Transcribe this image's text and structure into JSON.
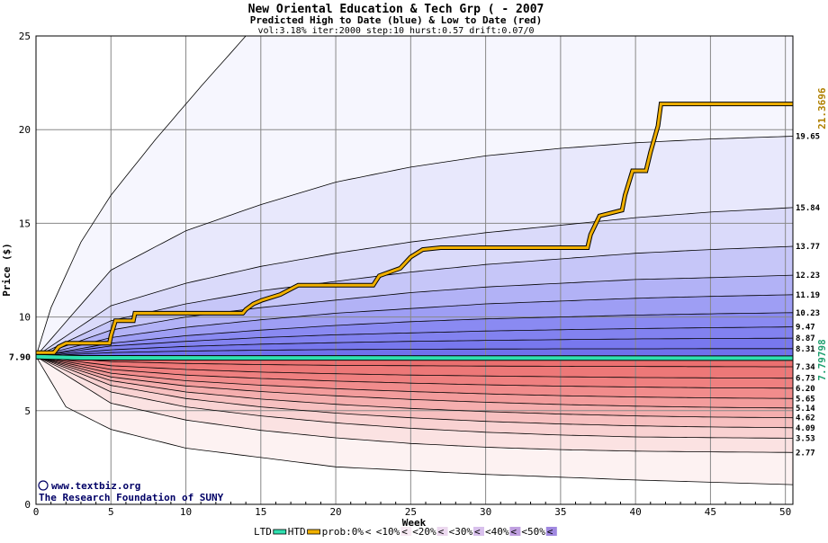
{
  "chart_data": {
    "type": "area",
    "title": "New Oriental Education & Tech Grp ( - 2007",
    "subtitle": "Predicted High to Date (blue) &  Low to Date (red)",
    "params_line": "vol:3.18% iter:2000 step:10 hurst:0.57 drift:0.07/0",
    "xlabel": "Week",
    "ylabel": "Price ($)",
    "xlim": [
      0,
      50.5
    ],
    "ylim": [
      0,
      25
    ],
    "x_ticks": [
      0,
      5,
      10,
      15,
      20,
      25,
      30,
      35,
      40,
      45,
      50
    ],
    "y_ticks": [
      0,
      5,
      10,
      15,
      20,
      25
    ],
    "grid": true,
    "start_price": 7.9,
    "start_price_label": "7.90",
    "high_to_date_last": "21.3696",
    "low_to_date_last": "7.79798",
    "high_to_date_path": [
      [
        0,
        8.1
      ],
      [
        1.2,
        8.1
      ],
      [
        1.5,
        8.4
      ],
      [
        2,
        8.6
      ],
      [
        4.9,
        8.6
      ],
      [
        5,
        9.0
      ],
      [
        5.3,
        9.8
      ],
      [
        6.5,
        9.8
      ],
      [
        6.6,
        10.2
      ],
      [
        13.8,
        10.2
      ],
      [
        14,
        10.4
      ],
      [
        14.5,
        10.7
      ],
      [
        15.1,
        10.9
      ],
      [
        16.3,
        11.2
      ],
      [
        17.5,
        11.7
      ],
      [
        22.5,
        11.7
      ],
      [
        22.9,
        12.2
      ],
      [
        24.3,
        12.6
      ],
      [
        25,
        13.2
      ],
      [
        25.8,
        13.6
      ],
      [
        27,
        13.7
      ],
      [
        36.8,
        13.7
      ],
      [
        37,
        14.4
      ],
      [
        37.6,
        15.4
      ],
      [
        39.1,
        15.7
      ],
      [
        39.3,
        16.5
      ],
      [
        39.8,
        17.8
      ],
      [
        40.7,
        17.8
      ],
      [
        41,
        18.8
      ],
      [
        41.5,
        20.2
      ],
      [
        41.7,
        21.37
      ],
      [
        50.5,
        21.37
      ]
    ],
    "low_to_date_path": [
      [
        0,
        7.88
      ],
      [
        2,
        7.84
      ],
      [
        3,
        7.82
      ],
      [
        50.5,
        7.8
      ]
    ],
    "high_quantiles": [
      {
        "label": "19.65",
        "values": [
          7.9,
          12.5,
          14.6,
          16.0,
          17.2,
          18.0,
          18.6,
          19.0,
          19.3,
          19.5,
          19.65
        ]
      },
      {
        "label": "15.84",
        "values": [
          7.9,
          10.6,
          11.8,
          12.7,
          13.4,
          14.0,
          14.5,
          14.9,
          15.3,
          15.6,
          15.84
        ]
      },
      {
        "label": "13.77",
        "values": [
          7.9,
          9.8,
          10.7,
          11.4,
          11.9,
          12.4,
          12.8,
          13.1,
          13.4,
          13.6,
          13.77
        ]
      },
      {
        "label": "12.23",
        "values": [
          7.9,
          9.3,
          10.0,
          10.5,
          10.9,
          11.3,
          11.6,
          11.8,
          12.0,
          12.1,
          12.23
        ]
      },
      {
        "label": "11.19",
        "values": [
          7.9,
          8.9,
          9.45,
          9.85,
          10.2,
          10.45,
          10.7,
          10.85,
          11.0,
          11.1,
          11.19
        ]
      },
      {
        "label": "10.23",
        "values": [
          7.9,
          8.6,
          9.0,
          9.3,
          9.55,
          9.75,
          9.9,
          10.0,
          10.1,
          10.17,
          10.23
        ]
      },
      {
        "label": "9.47",
        "values": [
          7.9,
          8.45,
          8.7,
          8.9,
          9.05,
          9.15,
          9.25,
          9.32,
          9.38,
          9.43,
          9.47
        ]
      },
      {
        "label": "8.87",
        "values": [
          7.9,
          8.25,
          8.43,
          8.55,
          8.63,
          8.7,
          8.75,
          8.79,
          8.83,
          8.85,
          8.87
        ]
      },
      {
        "label": "8.31",
        "values": [
          7.9,
          8.1,
          8.18,
          8.23,
          8.26,
          8.28,
          8.29,
          8.3,
          8.3,
          8.31,
          8.31
        ]
      }
    ],
    "low_quantiles": [
      {
        "label": "7.34",
        "values": [
          7.9,
          7.62,
          7.52,
          7.46,
          7.42,
          7.4,
          7.38,
          7.37,
          7.36,
          7.35,
          7.34
        ]
      },
      {
        "label": "6.73",
        "values": [
          7.9,
          7.4,
          7.2,
          7.06,
          6.97,
          6.9,
          6.85,
          6.81,
          6.77,
          6.75,
          6.73
        ]
      },
      {
        "label": "6.20",
        "values": [
          7.9,
          7.2,
          6.9,
          6.72,
          6.58,
          6.47,
          6.38,
          6.31,
          6.26,
          6.22,
          6.2
        ]
      },
      {
        "label": "5.65",
        "values": [
          7.9,
          7.0,
          6.6,
          6.36,
          6.17,
          6.02,
          5.9,
          5.8,
          5.73,
          5.68,
          5.65
        ]
      },
      {
        "label": "5.14",
        "values": [
          7.9,
          6.8,
          6.32,
          6.02,
          5.79,
          5.6,
          5.45,
          5.33,
          5.24,
          5.18,
          5.14
        ]
      },
      {
        "label": "4.62",
        "values": [
          7.9,
          6.6,
          6.0,
          5.62,
          5.34,
          5.12,
          4.95,
          4.82,
          4.72,
          4.66,
          4.62
        ]
      },
      {
        "label": "4.09",
        "values": [
          7.9,
          6.35,
          5.65,
          5.2,
          4.87,
          4.62,
          4.43,
          4.29,
          4.19,
          4.13,
          4.09
        ]
      },
      {
        "label": "3.53",
        "values": [
          7.9,
          6.0,
          5.2,
          4.72,
          4.35,
          4.06,
          3.85,
          3.7,
          3.6,
          3.56,
          3.53
        ]
      },
      {
        "label": "2.77",
        "values": [
          7.9,
          5.4,
          4.5,
          3.95,
          3.55,
          3.25,
          3.05,
          2.92,
          2.84,
          2.8,
          2.77
        ]
      }
    ],
    "extreme_upper": [
      [
        0,
        7.9
      ],
      [
        1,
        10.5
      ],
      [
        3,
        14.0
      ],
      [
        5,
        16.5
      ],
      [
        8,
        19.5
      ],
      [
        11,
        22.3
      ],
      [
        14,
        25.0
      ]
    ],
    "extreme_lower": [
      [
        0,
        7.9
      ],
      [
        2,
        5.2
      ],
      [
        5,
        4.0
      ],
      [
        10,
        3.0
      ],
      [
        20,
        2.0
      ],
      [
        30,
        1.6
      ],
      [
        40,
        1.3
      ],
      [
        50.5,
        1.05
      ]
    ],
    "band_colors_high": [
      "#f6f6fe",
      "#e8e8fc",
      "#dadafa",
      "#c6c6f8",
      "#b2b2f6",
      "#9e9ef4",
      "#8a8af2",
      "#8282f0",
      "#7878ee",
      "#7070ec"
    ],
    "band_colors_low": [
      "#fdf2f2",
      "#fbe2e2",
      "#f9d2d2",
      "#f7c0c0",
      "#f5aeae",
      "#f39c9c",
      "#f18c8c",
      "#ef8080",
      "#ed7878",
      "#eb7070"
    ],
    "high_to_date_color": "#f0b000",
    "low_to_date_color": "#30e0b0",
    "high_label_color": "#b08000",
    "low_label_color": "#20a070",
    "watermark": {
      "symbol": "©",
      "line1": "www.textbiz.org",
      "line2": "The Research Foundation of SUNY"
    },
    "legend": [
      {
        "key": "ltd",
        "label": "LTD",
        "swatch": "#30e0b0",
        "kind": "line"
      },
      {
        "key": "htd",
        "label": "HTD",
        "swatch": "#f0b000",
        "kind": "line"
      },
      {
        "key": "p0",
        "label": "prob:0%",
        "swatch": "#ffffff",
        "kind": "box"
      },
      {
        "key": "p10",
        "label": "<10%",
        "swatch": "#f7eaf3",
        "kind": "box"
      },
      {
        "key": "p20",
        "label": "<20%",
        "swatch": "#ecd8ef",
        "kind": "box"
      },
      {
        "key": "p30",
        "label": "<30%",
        "swatch": "#d8c0ec",
        "kind": "box"
      },
      {
        "key": "p40",
        "label": "<40%",
        "swatch": "#c0a0e0",
        "kind": "box"
      },
      {
        "key": "p50",
        "label": "<50%",
        "swatch": "#a088e0",
        "kind": "box"
      }
    ],
    "legend_lead": "<"
  }
}
